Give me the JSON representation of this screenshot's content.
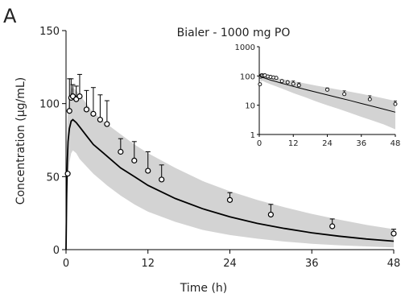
{
  "panel_label": "A",
  "chart_data": [
    {
      "type": "line",
      "title": "Bialer - 1000 mg PO",
      "xlabel": "Time (h)",
      "ylabel": "Concentration (µg/mL)",
      "xlim": [
        0,
        48
      ],
      "ylim": [
        0,
        150
      ],
      "xticks": [
        0,
        12,
        24,
        36,
        48
      ],
      "yticks": [
        0,
        50,
        100,
        150
      ],
      "grid": false,
      "colors": {
        "band": "#d3d3d3",
        "line": "#000000",
        "points": "#000000"
      },
      "prediction": {
        "x": [
          0,
          0.1,
          0.2,
          0.3,
          0.5,
          0.75,
          1,
          1.5,
          2,
          3,
          4,
          6,
          8,
          10,
          12,
          16,
          20,
          24,
          28,
          32,
          36,
          40,
          44,
          48
        ],
        "median": [
          0,
          38,
          62,
          74,
          83,
          88,
          89,
          87,
          84,
          78,
          72,
          64,
          56,
          50,
          44,
          35,
          28,
          22.5,
          18,
          14.5,
          11.5,
          9.2,
          7.3,
          5.8
        ],
        "lower": [
          0,
          20,
          38,
          50,
          60,
          66,
          68,
          66,
          62,
          57,
          52,
          44,
          37,
          31,
          26,
          19,
          13.5,
          10,
          7.5,
          5.5,
          4,
          3,
          2.2,
          1.5
        ],
        "upper": [
          0,
          55,
          85,
          98,
          106,
          110,
          111,
          109,
          106,
          100,
          94,
          86,
          79,
          72,
          66,
          56,
          47,
          40,
          34,
          29,
          24.5,
          20.5,
          17,
          14
        ]
      },
      "observed": [
        {
          "x": 0.25,
          "y": 52,
          "err": 0
        },
        {
          "x": 0.5,
          "y": 95,
          "err": 22
        },
        {
          "x": 0.75,
          "y": 104,
          "err": 13
        },
        {
          "x": 1,
          "y": 105,
          "err": 8
        },
        {
          "x": 1.5,
          "y": 103,
          "err": 9
        },
        {
          "x": 2,
          "y": 105,
          "err": 15
        },
        {
          "x": 3,
          "y": 96,
          "err": 13
        },
        {
          "x": 4,
          "y": 93,
          "err": 18
        },
        {
          "x": 5,
          "y": 89,
          "err": 17
        },
        {
          "x": 6,
          "y": 86,
          "err": 16
        },
        {
          "x": 8,
          "y": 67,
          "err": 9
        },
        {
          "x": 10,
          "y": 61,
          "err": 13
        },
        {
          "x": 12,
          "y": 54,
          "err": 13
        },
        {
          "x": 14,
          "y": 48,
          "err": 10
        },
        {
          "x": 24,
          "y": 34,
          "err": 5
        },
        {
          "x": 30,
          "y": 24,
          "err": 7
        },
        {
          "x": 39,
          "y": 16,
          "err": 5
        },
        {
          "x": 48,
          "y": 11,
          "err": 3
        }
      ]
    },
    {
      "type": "line",
      "inset": true,
      "scale_y": "log",
      "xlim": [
        0,
        48
      ],
      "ylim": [
        1,
        1000
      ],
      "xticks": [
        0,
        12,
        24,
        36,
        48
      ],
      "yticks": [
        1,
        10,
        100,
        1000
      ],
      "ytick_labels": [
        "1",
        "10",
        "100",
        "1000"
      ],
      "grid": false,
      "colors": {
        "band": "#d3d3d3",
        "line": "#000000",
        "points": "#000000"
      }
    }
  ]
}
